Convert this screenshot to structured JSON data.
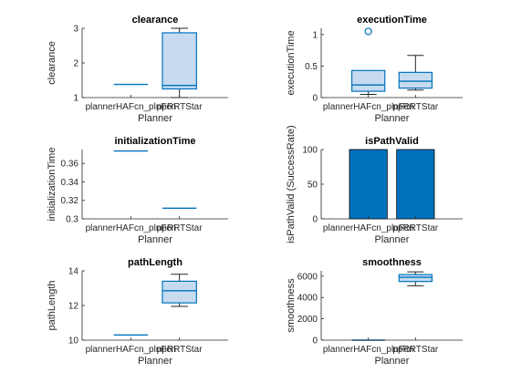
{
  "figure": {
    "background": "#ffffff"
  },
  "style": {
    "box_edge": "#0072bd",
    "box_fill": "#c6dbef",
    "bar_fill": "#0072bd",
    "axis_color": "#262626",
    "text_color": "#262626"
  },
  "chart_data": [
    {
      "type": "box",
      "title": "clearance",
      "xlabel": "Planner",
      "ylabel": "clearance",
      "categories": [
        "plannerHAFcn_plnFcn",
        "ppRRTStar"
      ],
      "ylim": [
        1,
        3
      ],
      "yticks": [
        "1",
        "2",
        "3"
      ],
      "yticks_values": [
        1,
        2,
        3
      ],
      "boxes": [
        {
          "min": 1.38,
          "q1": 1.38,
          "median": 1.38,
          "q3": 1.38,
          "max": 1.38,
          "outliers": []
        },
        {
          "min": 1.0,
          "q1": 1.25,
          "median": 1.35,
          "q3": 2.87,
          "max": 3.0,
          "outliers": []
        }
      ]
    },
    {
      "type": "box",
      "title": "executionTime",
      "xlabel": "Planner",
      "ylabel": "executionTime",
      "categories": [
        "plannerHAFcn_plnFcn",
        "ppRRTStar"
      ],
      "ylim": [
        0,
        1.1
      ],
      "yticks": [
        "0",
        "0.5",
        "1"
      ],
      "yticks_values": [
        0,
        0.5,
        1
      ],
      "boxes": [
        {
          "min": 0.05,
          "q1": 0.1,
          "median": 0.2,
          "q3": 0.43,
          "max": 0.43,
          "outliers": [
            1.05
          ]
        },
        {
          "min": 0.12,
          "q1": 0.15,
          "median": 0.26,
          "q3": 0.4,
          "max": 0.67,
          "outliers": []
        }
      ]
    },
    {
      "type": "box",
      "title": "initializationTime",
      "xlabel": "Planner",
      "ylabel": "initializationTime",
      "categories": [
        "plannerHAFcn_plnFcn",
        "ppRRTStar"
      ],
      "ylim": [
        0.3,
        0.375
      ],
      "yticks": [
        "0.3",
        "0.32",
        "0.34",
        "0.36"
      ],
      "yticks_values": [
        0.3,
        0.32,
        0.34,
        0.36
      ],
      "boxes": [
        {
          "min": 0.3735,
          "q1": 0.3735,
          "median": 0.3735,
          "q3": 0.3735,
          "max": 0.3735,
          "outliers": []
        },
        {
          "min": 0.3115,
          "q1": 0.3115,
          "median": 0.3115,
          "q3": 0.3115,
          "max": 0.3115,
          "outliers": []
        }
      ]
    },
    {
      "type": "bar",
      "title": "isPathValid",
      "xlabel": "Planner",
      "ylabel": "isPathValid (SuccessRate)",
      "categories": [
        "plannerHAFcn_plnFcn",
        "ppRRTStar"
      ],
      "values": [
        100,
        100
      ],
      "ylim": [
        0,
        100
      ],
      "yticks": [
        "0",
        "50",
        "100"
      ],
      "yticks_values": [
        0,
        50,
        100
      ]
    },
    {
      "type": "box",
      "title": "pathLength",
      "xlabel": "Planner",
      "ylabel": "pathLength",
      "categories": [
        "plannerHAFcn_plnFcn",
        "ppRRTStar"
      ],
      "ylim": [
        10,
        14
      ],
      "yticks": [
        "10",
        "12",
        "14"
      ],
      "yticks_values": [
        10,
        12,
        14
      ],
      "boxes": [
        {
          "min": 10.3,
          "q1": 10.3,
          "median": 10.3,
          "q3": 10.3,
          "max": 10.3,
          "outliers": []
        },
        {
          "min": 11.95,
          "q1": 12.15,
          "median": 12.85,
          "q3": 13.4,
          "max": 13.8,
          "outliers": []
        }
      ]
    },
    {
      "type": "box",
      "title": "smoothness",
      "xlabel": "Planner",
      "ylabel": "smoothness",
      "categories": [
        "plannerHAFcn_plnFcn",
        "ppRRTStar"
      ],
      "ylim": [
        0,
        6500
      ],
      "yticks": [
        "0",
        "2000",
        "4000",
        "6000"
      ],
      "yticks_values": [
        0,
        2000,
        4000,
        6000
      ],
      "boxes": [
        {
          "min": 0,
          "q1": 0,
          "median": 0,
          "q3": 0,
          "max": 0,
          "outliers": []
        },
        {
          "min": 5100,
          "q1": 5500,
          "median": 5900,
          "q3": 6150,
          "max": 6400,
          "outliers": []
        }
      ]
    }
  ]
}
